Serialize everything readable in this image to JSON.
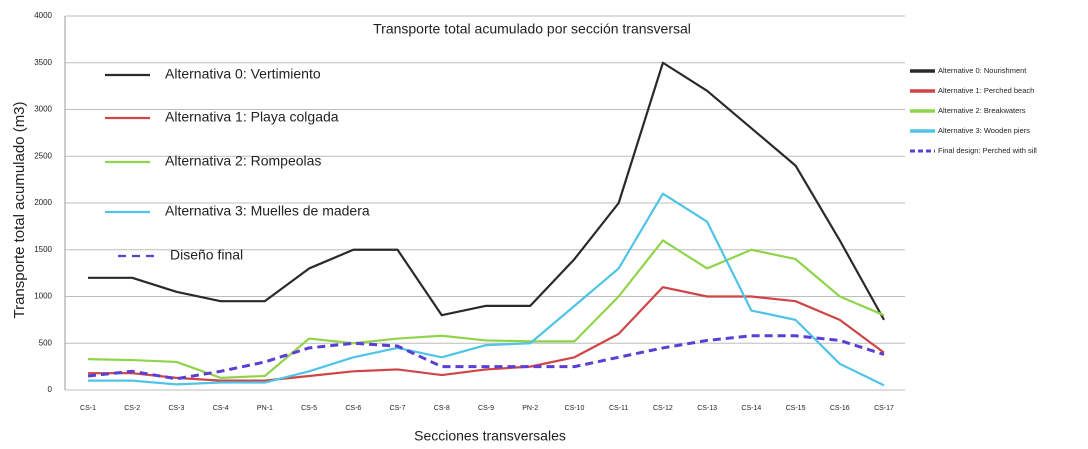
{
  "chart_data": {
    "type": "line",
    "title": "Transporte total acumulado por sección transversal",
    "x_label": "Secciones transversales",
    "y_label": "Transporte total acumulado (m3)",
    "categories": [
      "CS-1",
      "CS-2",
      "CS-3",
      "CS-4",
      "PN-1",
      "CS-5",
      "CS-6",
      "CS-7",
      "CS-8",
      "CS-9",
      "PN-2",
      "CS-10",
      "CS-11",
      "CS-12",
      "CS-13",
      "CS-14",
      "CS-15",
      "CS-16",
      "CS-17"
    ],
    "ylim": [
      0,
      4000
    ],
    "yticks": [
      0,
      500,
      1000,
      1500,
      2000,
      2500,
      3000,
      3500,
      4000
    ],
    "grid": true,
    "series": [
      {
        "name": "Alternativa 0: Vertimiento",
        "legend_en": "Alternative 0: Nourishment",
        "color": "#2a2a2a",
        "style": "solid",
        "values": [
          1200,
          1200,
          1050,
          950,
          950,
          1300,
          1500,
          1500,
          800,
          900,
          900,
          1400,
          2000,
          3500,
          3200,
          2800,
          2400,
          1600,
          750
        ]
      },
      {
        "name": "Alternativa 1: Playa colgada",
        "legend_en": "Alternative 1: Perched beach",
        "color": "#d04545",
        "style": "solid",
        "values": [
          180,
          180,
          130,
          100,
          100,
          150,
          200,
          220,
          160,
          220,
          250,
          350,
          600,
          1100,
          1000,
          1000,
          950,
          750,
          400
        ]
      },
      {
        "name": "Alternativa 2: Rompeolas",
        "legend_en": "Alternative 2: Breakwaters",
        "color": "#8fd44a",
        "style": "solid",
        "values": [
          330,
          320,
          300,
          130,
          150,
          550,
          500,
          550,
          580,
          530,
          520,
          520,
          1000,
          1600,
          1300,
          1500,
          1400,
          1000,
          800
        ]
      },
      {
        "name": "Alternativa 3: Muelles de madera",
        "legend_en": "Alternative 3: Wooden piers",
        "color": "#4fc3e8",
        "style": "solid",
        "values": [
          100,
          100,
          60,
          80,
          80,
          200,
          350,
          450,
          350,
          480,
          500,
          900,
          1300,
          2100,
          1800,
          850,
          750,
          280,
          50
        ]
      },
      {
        "name": "Diseño final",
        "legend_en": "Final design: Perched with sill",
        "color": "#5b3fd4",
        "style": "dashed",
        "values": [
          150,
          200,
          120,
          200,
          300,
          450,
          500,
          470,
          250,
          250,
          250,
          250,
          350,
          450,
          530,
          580,
          580,
          530,
          380
        ]
      }
    ]
  }
}
